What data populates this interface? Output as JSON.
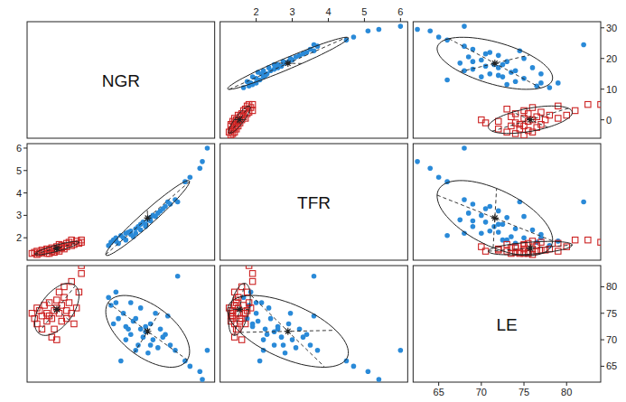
{
  "chart_data": {
    "type": "scatter_matrix",
    "variables": [
      {
        "label": "NGR",
        "lim": [
          -6,
          32
        ],
        "ticks": [
          0,
          10,
          20,
          30
        ]
      },
      {
        "label": "TFR",
        "lim": [
          1.0,
          6.2
        ],
        "ticks": [
          2,
          3,
          4,
          5,
          6
        ]
      },
      {
        "label": "LE",
        "lim": [
          62,
          84
        ],
        "ticks": [
          65,
          70,
          75,
          80
        ]
      }
    ],
    "series": [
      {
        "color": "#2a8ad8",
        "marker": "circle",
        "values": [
          [
            10.5,
            1.65,
            78
          ],
          [
            11,
            1.8,
            76.5
          ],
          [
            11.5,
            1.9,
            73
          ],
          [
            12,
            2.0,
            77
          ],
          [
            12.5,
            1.75,
            74
          ],
          [
            13,
            2.1,
            66
          ],
          [
            13.5,
            2.0,
            75
          ],
          [
            14,
            2.2,
            70
          ],
          [
            14,
            1.9,
            72.5
          ],
          [
            15,
            2.3,
            71
          ],
          [
            15.5,
            2.05,
            73.5
          ],
          [
            16,
            2.4,
            74
          ],
          [
            16,
            2.2,
            68
          ],
          [
            16.5,
            2.5,
            69
          ],
          [
            17,
            2.6,
            72
          ],
          [
            17,
            2.35,
            76
          ],
          [
            17.5,
            2.7,
            70.5
          ],
          [
            18,
            2.5,
            71.5
          ],
          [
            18.5,
            2.8,
            67.5
          ],
          [
            19,
            2.9,
            73
          ],
          [
            19,
            2.75,
            69
          ],
          [
            19.5,
            3.0,
            70
          ],
          [
            20,
            2.95,
            75
          ],
          [
            20.5,
            3.1,
            68.5
          ],
          [
            21,
            3.2,
            72
          ],
          [
            21.5,
            3.3,
            70.5
          ],
          [
            22,
            3.4,
            71
          ],
          [
            22.5,
            3.6,
            74.5
          ],
          [
            23,
            3.5,
            69
          ],
          [
            24,
            3.7,
            68
          ],
          [
            12,
            1.85,
            79
          ],
          [
            15,
            2.15,
            77
          ],
          [
            14.5,
            2.25,
            72
          ],
          [
            26,
            4.5,
            66
          ],
          [
            27,
            4.7,
            65
          ],
          [
            29,
            5.1,
            64
          ],
          [
            29.5,
            5.4,
            62.5
          ],
          [
            30.5,
            6.0,
            68
          ],
          [
            24.5,
            3.6,
            82
          ],
          [
            18,
            2.6,
            72.5
          ]
        ]
      },
      {
        "color": "#cc2222",
        "marker": "square",
        "values": [
          [
            -5,
            1.3,
            75
          ],
          [
            -4.5,
            1.35,
            74
          ],
          [
            -4,
            1.25,
            76
          ],
          [
            -4,
            1.4,
            73
          ],
          [
            -3.5,
            1.3,
            75.5
          ],
          [
            -3,
            1.45,
            72
          ],
          [
            -3,
            1.35,
            74.5
          ],
          [
            -2.5,
            1.4,
            76.5
          ],
          [
            -2,
            1.5,
            75
          ],
          [
            -2,
            1.3,
            73.5
          ],
          [
            -1.5,
            1.45,
            77
          ],
          [
            -1,
            1.4,
            70.5
          ],
          [
            -1,
            1.55,
            74
          ],
          [
            -0.5,
            1.35,
            75.5
          ],
          [
            0,
            1.5,
            76
          ],
          [
            0,
            1.6,
            70
          ],
          [
            0,
            1.45,
            77.5
          ],
          [
            0.5,
            1.7,
            75
          ],
          [
            0.5,
            1.4,
            79
          ],
          [
            1,
            1.55,
            73.5
          ],
          [
            1,
            1.65,
            76.5
          ],
          [
            1.5,
            1.5,
            78
          ],
          [
            2,
            1.75,
            75.5
          ],
          [
            2,
            1.6,
            74
          ],
          [
            2.5,
            1.8,
            77
          ],
          [
            3,
            1.65,
            75
          ],
          [
            3,
            1.9,
            81
          ],
          [
            3.5,
            1.7,
            73
          ],
          [
            4,
            1.85,
            76
          ],
          [
            4.5,
            1.75,
            79
          ],
          [
            5,
            1.9,
            82.5
          ],
          [
            5,
            1.8,
            84
          ],
          [
            -0.5,
            1.5,
            72
          ],
          [
            1.5,
            1.6,
            80
          ],
          [
            -1.5,
            1.3,
            74.5
          ]
        ]
      }
    ]
  }
}
